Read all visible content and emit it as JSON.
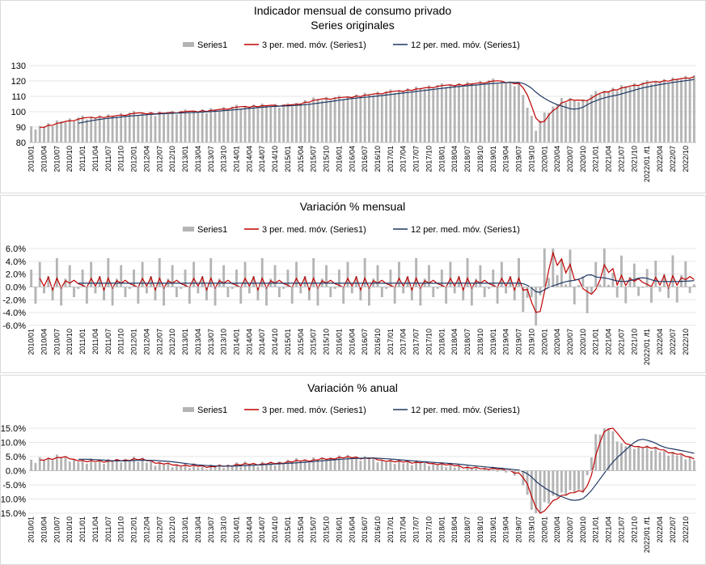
{
  "colors": {
    "bar": "#b4b4b4",
    "ma3": "#c00000",
    "ma12": "#1f3864"
  },
  "legend": {
    "bars": "Series1",
    "ma3": "3 per. med. móv. (Series1)",
    "ma12": "12 per. med. móv. (Series1)"
  },
  "x_labels": [
    "2010/01",
    "2010/04",
    "2010/07",
    "2010/10",
    "2011/01",
    "2011/04",
    "2011/07",
    "2011/10",
    "2012/01",
    "2012/04",
    "2012/07",
    "2012/10",
    "2013/01",
    "2013/04",
    "2013/07",
    "2013/10",
    "2014/01",
    "2014/04",
    "2014/07",
    "2014/10",
    "2015/01",
    "2015/04",
    "2015/07",
    "2015/10",
    "2016/01",
    "2016/04",
    "2016/07",
    "2016/10",
    "2017/01",
    "2017/04",
    "2017/07",
    "2017/10",
    "2018/01",
    "2018/04",
    "2018/07",
    "2018/10",
    "2019/01",
    "2019/04",
    "2019/07",
    "2019/10",
    "2020/01",
    "2020/04",
    "2020/07",
    "2020/10",
    "2021/01",
    "2021/04",
    "2021/07",
    "2021/10",
    "2022/01 /f1",
    "2022/04",
    "2022/07",
    "2022/10"
  ],
  "chart_data": [
    {
      "type": "bar",
      "title": "Indicador mensual de consumo privado",
      "subtitle": "Series originales",
      "ylim": [
        80,
        130
      ],
      "yticks": [
        80,
        90,
        100,
        110,
        120,
        130
      ],
      "ytick_labels": [
        "80",
        "90",
        "100",
        "110",
        "120",
        "130"
      ],
      "legend_position": "top",
      "grid": true,
      "series": [
        {
          "name": "Series1",
          "kind": "bar",
          "anchors": [
            [
              0,
              89
            ],
            [
              6,
              93
            ],
            [
              12,
              96
            ],
            [
              18,
              97
            ],
            [
              24,
              99
            ],
            [
              30,
              99
            ],
            [
              36,
              100
            ],
            [
              42,
              101
            ],
            [
              48,
              103
            ],
            [
              54,
              104
            ],
            [
              60,
              104
            ],
            [
              66,
              108
            ],
            [
              72,
              109
            ],
            [
              78,
              111
            ],
            [
              84,
              113
            ],
            [
              90,
              115
            ],
            [
              96,
              117
            ],
            [
              102,
              118
            ],
            [
              108,
              120
            ],
            [
              114,
              118
            ],
            [
              118,
              89
            ],
            [
              120,
              98
            ],
            [
              124,
              108
            ],
            [
              129,
              107
            ],
            [
              132,
              112
            ],
            [
              138,
              116
            ],
            [
              144,
              119
            ],
            [
              150,
              121
            ],
            [
              155,
              123
            ]
          ],
          "seasonal": [
            1.5,
            -1.2,
            0.4,
            -0.6,
            0.9,
            -1.8,
            1.3,
            0.2,
            -0.9,
            1.1,
            -1.4,
            0.7
          ]
        },
        {
          "name": "3 per. med. móv. (Series1)",
          "kind": "ma3"
        },
        {
          "name": "12 per. med. móv. (Series1)",
          "kind": "ma12"
        }
      ]
    },
    {
      "type": "bar",
      "title": "Variación % mensual",
      "ylim": [
        -6,
        6
      ],
      "yticks": [
        -6,
        -4,
        -2,
        0,
        2,
        4,
        6
      ],
      "ytick_labels": [
        "-6.0%",
        "-4.0%",
        "-2.0%",
        "0.0%",
        "2.0%",
        "4.0%",
        "6.0%"
      ],
      "legend_position": "top",
      "grid": true,
      "series": [
        {
          "name": "Series1",
          "kind": "bar",
          "anchors": [
            [
              0,
              0.5
            ],
            [
              114,
              0.5
            ],
            [
              115,
              -0.5
            ],
            [
              118,
              -6.5
            ],
            [
              120,
              5.5
            ],
            [
              122,
              3.5
            ],
            [
              125,
              3
            ],
            [
              128,
              -0.5
            ],
            [
              130,
              -2
            ],
            [
              133,
              3.5
            ],
            [
              136,
              1
            ],
            [
              144,
              0.6
            ],
            [
              155,
              1.2
            ]
          ],
          "seasonal": [
            2.2,
            -3.1,
            3.4,
            -1.5,
            1.2,
            -2.6,
            4.0,
            -3.4,
            0.8,
            2.9,
            -2.1,
            -0.8
          ]
        },
        {
          "name": "3 per. med. móv. (Series1)",
          "kind": "ma3"
        },
        {
          "name": "12 per. med. móv. (Series1)",
          "kind": "ma12"
        }
      ]
    },
    {
      "type": "bar",
      "title": "Variación % anual",
      "ylim": [
        -15,
        15
      ],
      "yticks": [
        -15,
        -10,
        -5,
        0,
        5,
        10,
        15
      ],
      "ytick_labels": [
        "-15.0%",
        "-10.0%",
        "-5.0%",
        "0.0%",
        "5.0%",
        "10.0%",
        "15.0%"
      ],
      "legend_position": "top",
      "grid": true,
      "series": [
        {
          "name": "Series1",
          "kind": "bar",
          "anchors": [
            [
              0,
              3
            ],
            [
              6,
              5
            ],
            [
              12,
              3
            ],
            [
              18,
              3.5
            ],
            [
              24,
              4
            ],
            [
              30,
              2.5
            ],
            [
              36,
              1.5
            ],
            [
              42,
              1.5
            ],
            [
              48,
              2
            ],
            [
              54,
              2.5
            ],
            [
              60,
              3
            ],
            [
              66,
              4
            ],
            [
              72,
              4.5
            ],
            [
              78,
              4.5
            ],
            [
              84,
              3
            ],
            [
              90,
              3
            ],
            [
              96,
              2
            ],
            [
              102,
              1
            ],
            [
              108,
              0.5
            ],
            [
              114,
              -1
            ],
            [
              118,
              -17
            ],
            [
              120,
              -12
            ],
            [
              124,
              -8
            ],
            [
              129,
              -7
            ],
            [
              130,
              -2
            ],
            [
              132,
              12
            ],
            [
              135,
              16
            ],
            [
              138,
              9
            ],
            [
              144,
              8
            ],
            [
              150,
              6
            ],
            [
              155,
              4
            ]
          ],
          "seasonal": [
            0.9,
            -0.6,
            1.1,
            -0.4,
            0.3,
            -1.0,
            0.7,
            -0.2,
            0.5,
            -0.8,
            0.4,
            -0.3
          ]
        },
        {
          "name": "3 per. med. móv. (Series1)",
          "kind": "ma3"
        },
        {
          "name": "12 per. med. móv. (Series1)",
          "kind": "ma12"
        }
      ]
    }
  ]
}
